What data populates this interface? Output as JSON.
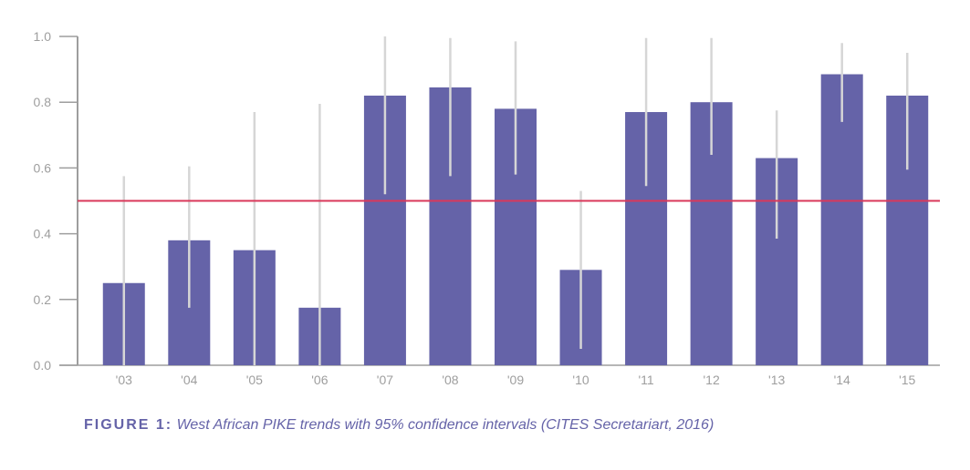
{
  "chart_data": {
    "type": "bar",
    "categories": [
      "'03",
      "'04",
      "'05",
      "'06",
      "'07",
      "'08",
      "'09",
      "'10",
      "'11",
      "'12",
      "'13",
      "'14",
      "'15"
    ],
    "values": [
      0.25,
      0.38,
      0.35,
      0.175,
      0.82,
      0.845,
      0.78,
      0.29,
      0.77,
      0.8,
      0.63,
      0.885,
      0.82
    ],
    "ci_low": [
      0.0,
      0.175,
      0.0,
      0.0,
      0.52,
      0.575,
      0.58,
      0.05,
      0.545,
      0.64,
      0.385,
      0.74,
      0.595
    ],
    "ci_high": [
      0.575,
      0.605,
      0.77,
      0.795,
      1.0,
      0.995,
      0.985,
      0.53,
      0.995,
      0.995,
      0.775,
      0.98,
      0.95
    ],
    "reference_line": 0.5,
    "ylim": [
      0,
      1.0
    ],
    "yticks": [
      "0.0",
      "0.2",
      "0.4",
      "0.6",
      "0.8",
      "1.0"
    ],
    "ytick_values": [
      0,
      0.2,
      0.4,
      0.6,
      0.8,
      1.0
    ],
    "grid": false,
    "colors": {
      "bar": "#6563a8",
      "ci": "#d6d6d6",
      "reference": "#d9385a",
      "axis": "#9e9e9e"
    }
  },
  "caption": {
    "label": "FIGURE 1:",
    "text": "West African PIKE trends with 95% confidence intervals (CITES Secretariart, 2016)"
  }
}
